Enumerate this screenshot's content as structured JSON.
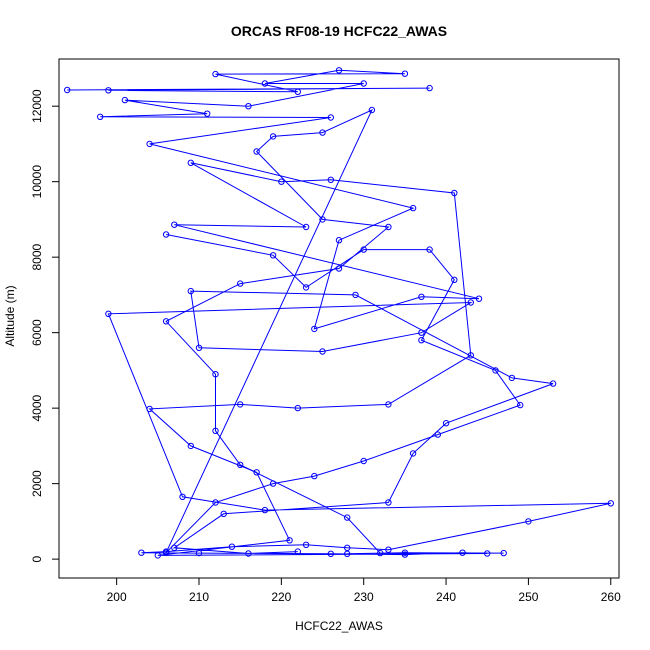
{
  "chart_data": {
    "type": "scatter",
    "title": "ORCAS RF08-19 HCFC22_AWAS",
    "xlabel": "HCFC22_AWAS",
    "ylabel": "Altitude (m)",
    "xlim": [
      193,
      261
    ],
    "ylim": [
      -500,
      13250
    ],
    "xticks": [
      200,
      210,
      220,
      230,
      240,
      250,
      260
    ],
    "yticks": [
      0,
      2000,
      4000,
      6000,
      8000,
      10000,
      12000
    ],
    "grid": false,
    "color": "#0000ff",
    "marker": "open-circle",
    "connected": true,
    "series": [
      {
        "values": [
          {
            "x": 194,
            "y": 12430
          },
          {
            "x": 238,
            "y": 12480
          },
          {
            "x": 199,
            "y": 12420
          },
          {
            "x": 222,
            "y": 12380
          },
          {
            "x": 212,
            "y": 12850
          },
          {
            "x": 235,
            "y": 12860
          },
          {
            "x": 227,
            "y": 12950
          },
          {
            "x": 218,
            "y": 12600
          },
          {
            "x": 230,
            "y": 12600
          },
          {
            "x": 216,
            "y": 12000
          },
          {
            "x": 201,
            "y": 12160
          },
          {
            "x": 211,
            "y": 11800
          },
          {
            "x": 198,
            "y": 11720
          },
          {
            "x": 226,
            "y": 11700
          },
          {
            "x": 204,
            "y": 11000
          },
          {
            "x": 236,
            "y": 9300
          },
          {
            "x": 227,
            "y": 8450
          },
          {
            "x": 224,
            "y": 6100
          },
          {
            "x": 237,
            "y": 6950
          },
          {
            "x": 244,
            "y": 6900
          },
          {
            "x": 207,
            "y": 8860
          },
          {
            "x": 223,
            "y": 8800
          },
          {
            "x": 209,
            "y": 10500
          },
          {
            "x": 220,
            "y": 10000
          },
          {
            "x": 226,
            "y": 10050
          },
          {
            "x": 241,
            "y": 9700
          },
          {
            "x": 243,
            "y": 5400
          },
          {
            "x": 233,
            "y": 4100
          },
          {
            "x": 222,
            "y": 4000
          },
          {
            "x": 215,
            "y": 4100
          },
          {
            "x": 204,
            "y": 3980
          },
          {
            "x": 209,
            "y": 3000
          },
          {
            "x": 217,
            "y": 2300
          },
          {
            "x": 221,
            "y": 500
          },
          {
            "x": 205,
            "y": 100
          },
          {
            "x": 245,
            "y": 150
          },
          {
            "x": 242,
            "y": 170
          },
          {
            "x": 235,
            "y": 120
          },
          {
            "x": 226,
            "y": 140
          },
          {
            "x": 210,
            "y": 160
          },
          {
            "x": 203,
            "y": 170
          },
          {
            "x": 206,
            "y": 200
          },
          {
            "x": 214,
            "y": 330
          },
          {
            "x": 223,
            "y": 380
          },
          {
            "x": 228,
            "y": 300
          },
          {
            "x": 233,
            "y": 250
          },
          {
            "x": 250,
            "y": 1000
          },
          {
            "x": 260,
            "y": 1480
          },
          {
            "x": 218,
            "y": 1300
          },
          {
            "x": 208,
            "y": 1650
          },
          {
            "x": 199,
            "y": 6500
          },
          {
            "x": 243,
            "y": 6800
          },
          {
            "x": 237,
            "y": 6000
          },
          {
            "x": 225,
            "y": 5500
          },
          {
            "x": 210,
            "y": 5600
          },
          {
            "x": 209,
            "y": 7100
          },
          {
            "x": 229,
            "y": 7000
          },
          {
            "x": 248,
            "y": 4800
          },
          {
            "x": 253,
            "y": 4650
          },
          {
            "x": 240,
            "y": 3600
          },
          {
            "x": 236,
            "y": 2800
          },
          {
            "x": 233,
            "y": 1500
          },
          {
            "x": 213,
            "y": 1200
          },
          {
            "x": 207,
            "y": 300
          },
          {
            "x": 216,
            "y": 150
          },
          {
            "x": 222,
            "y": 200
          }
        ]
      },
      {
        "values": [
          {
            "x": 206,
            "y": 8600
          },
          {
            "x": 219,
            "y": 8050
          },
          {
            "x": 223,
            "y": 7200
          },
          {
            "x": 230,
            "y": 8200
          },
          {
            "x": 238,
            "y": 8200
          },
          {
            "x": 241,
            "y": 7400
          },
          {
            "x": 237,
            "y": 5800
          },
          {
            "x": 246,
            "y": 5000
          },
          {
            "x": 249,
            "y": 4080
          },
          {
            "x": 239,
            "y": 3300
          },
          {
            "x": 230,
            "y": 2600
          },
          {
            "x": 224,
            "y": 2200
          },
          {
            "x": 219,
            "y": 2000
          },
          {
            "x": 212,
            "y": 1500
          },
          {
            "x": 206,
            "y": 170
          },
          {
            "x": 231,
            "y": 11900
          },
          {
            "x": 225,
            "y": 11300
          },
          {
            "x": 219,
            "y": 11200
          },
          {
            "x": 217,
            "y": 10800
          },
          {
            "x": 225,
            "y": 9000
          },
          {
            "x": 233,
            "y": 8800
          },
          {
            "x": 227,
            "y": 7700
          },
          {
            "x": 215,
            "y": 7300
          },
          {
            "x": 206,
            "y": 6300
          },
          {
            "x": 212,
            "y": 4900
          },
          {
            "x": 212,
            "y": 3400
          },
          {
            "x": 215,
            "y": 2500
          },
          {
            "x": 228,
            "y": 1100
          },
          {
            "x": 232,
            "y": 160
          },
          {
            "x": 247,
            "y": 160
          },
          {
            "x": 235,
            "y": 170
          },
          {
            "x": 228,
            "y": 140
          }
        ]
      }
    ]
  }
}
